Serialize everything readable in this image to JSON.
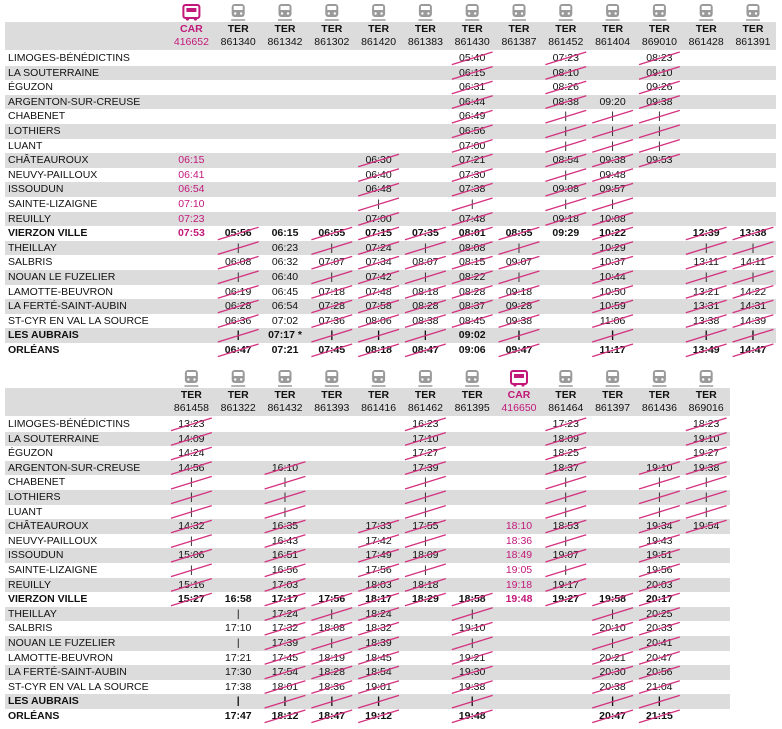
{
  "stations": [
    "LIMOGES-BÉNÉDICTINS",
    "LA SOUTERRAINE",
    "ÉGUZON",
    "ARGENTON-SUR-CREUSE",
    "CHABENET",
    "LOTHIERS",
    "LUANT",
    "CHÂTEAUROUX",
    "NEUVY-PAILLOUX",
    "ISSOUDUN",
    "SAINTE-LIZAIGNE",
    "REUILLY",
    "VIERZON VILLE",
    "THEILLAY",
    "SALBRIS",
    "NOUAN LE FUZELIER",
    "LAMOTTE-BEUVRON",
    "LA FERTÉ-SAINT-AUBIN",
    "ST-CYR EN VAL LA SOURCE",
    "LES AUBRAIS",
    "ORLÉANS"
  ],
  "tables": [
    {
      "columns": [
        {
          "mode": "CAR",
          "number": "416652",
          "times": [
            null,
            null,
            null,
            null,
            null,
            null,
            null,
            "06:15",
            "06:41",
            "06:54",
            "07:10",
            "07:23",
            "07:53",
            null,
            null,
            null,
            null,
            null,
            null,
            null,
            null
          ]
        },
        {
          "mode": "TER",
          "number": "861340",
          "cancelled": [
            12,
            20
          ],
          "times": [
            null,
            null,
            null,
            null,
            null,
            null,
            null,
            null,
            null,
            null,
            null,
            null,
            "05:56",
            "|",
            "06:08",
            "|",
            "06:19",
            "06:28",
            "06:36",
            "|",
            "06:47"
          ]
        },
        {
          "mode": "TER",
          "number": "861342",
          "times": [
            null,
            null,
            null,
            null,
            null,
            null,
            null,
            null,
            null,
            null,
            null,
            null,
            "06:15",
            "06:23",
            "06:32",
            "06:40",
            "06:45",
            "06:54",
            "07:02",
            "07:17 *",
            "07:21"
          ]
        },
        {
          "mode": "TER",
          "number": "861302",
          "cancelled": [
            12,
            20
          ],
          "times": [
            null,
            null,
            null,
            null,
            null,
            null,
            null,
            null,
            null,
            null,
            null,
            null,
            "06:55",
            "|",
            "07:07",
            "|",
            "07:18",
            "07:28",
            "07:36",
            "|",
            "07:45"
          ]
        },
        {
          "mode": "TER",
          "number": "861420",
          "cancelled": [
            7,
            20
          ],
          "times": [
            null,
            null,
            null,
            null,
            null,
            null,
            null,
            "06:30",
            "06:40",
            "06:48",
            "|",
            "07:00",
            "07:15",
            "07:24",
            "07:34",
            "07:42",
            "07:48",
            "07:58",
            "08:06",
            "|",
            "08:18"
          ]
        },
        {
          "mode": "TER",
          "number": "861383",
          "cancelled": [
            12,
            20
          ],
          "times": [
            null,
            null,
            null,
            null,
            null,
            null,
            null,
            null,
            null,
            null,
            null,
            null,
            "07:35",
            "|",
            "08:07",
            "|",
            "08:18",
            "08:28",
            "08:38",
            "|",
            "08:47"
          ]
        },
        {
          "mode": "TER",
          "number": "861430",
          "cancelled": [
            0,
            18
          ],
          "times": [
            "05:40",
            "06:15",
            "06:31",
            "06:44",
            "06:49",
            "06:56",
            "07:00",
            "07:21",
            "07:30",
            "07:38",
            "|",
            "07:48",
            "08:01",
            "08:08",
            "08:15",
            "08:22",
            "08:28",
            "08:37",
            "08:45",
            "09:02",
            "09:06"
          ]
        },
        {
          "mode": "TER",
          "number": "861387",
          "cancelled": [
            12,
            20
          ],
          "times": [
            null,
            null,
            null,
            null,
            null,
            null,
            null,
            null,
            null,
            null,
            null,
            null,
            "08:55",
            "|",
            "09:07",
            "|",
            "09:18",
            "09:28",
            "09:38",
            "|",
            "09:47"
          ]
        },
        {
          "mode": "TER",
          "number": "861452",
          "cancelled": [
            0,
            11
          ],
          "times": [
            "07:23",
            "08:10",
            "08:26",
            "08:38",
            "|",
            "|",
            "|",
            "08:54",
            "|",
            "09:08",
            "|",
            "09:18",
            "09:29",
            null,
            null,
            null,
            null,
            null,
            null,
            null,
            null
          ]
        },
        {
          "mode": "TER",
          "number": "861404",
          "cancelled": [
            4,
            20
          ],
          "times": [
            null,
            null,
            null,
            "09:20",
            "|",
            "|",
            "|",
            "09:38",
            "09:48",
            "09:57",
            "|",
            "10:08",
            "10:22",
            "10:29",
            "10:37",
            "10:44",
            "10:50",
            "10:59",
            "11:06",
            "|",
            "11:17"
          ]
        },
        {
          "mode": "TER",
          "number": "869010",
          "cancelled": [
            0,
            7
          ],
          "times": [
            "08:23",
            "09:10",
            "09:26",
            "09:38",
            "|",
            "|",
            "|",
            "09:53",
            null,
            null,
            null,
            null,
            null,
            null,
            null,
            null,
            null,
            null,
            null,
            null,
            null
          ]
        },
        {
          "mode": "TER",
          "number": "861428",
          "cancelled": [
            12,
            20
          ],
          "times": [
            null,
            null,
            null,
            null,
            null,
            null,
            null,
            null,
            null,
            null,
            null,
            null,
            "12:39",
            "|",
            "13:11",
            "|",
            "13:21",
            "13:31",
            "13:38",
            "|",
            "13:49"
          ]
        },
        {
          "mode": "TER",
          "number": "861391",
          "cancelled": [
            12,
            20
          ],
          "times": [
            null,
            null,
            null,
            null,
            null,
            null,
            null,
            null,
            null,
            null,
            null,
            null,
            "13:38",
            "|",
            "14:11",
            "|",
            "14:22",
            "14:31",
            "14:39",
            "|",
            "14:47"
          ]
        }
      ]
    },
    {
      "columns": [
        {
          "mode": "TER",
          "number": "861458",
          "cancelled": [
            0,
            12
          ],
          "times": [
            "13:23",
            "14:09",
            "14:24",
            "14:56",
            "|",
            "|",
            "|",
            "14:32",
            "|",
            "15:06",
            "|",
            "15:16",
            "15:27",
            null,
            null,
            null,
            null,
            null,
            null,
            null,
            null
          ]
        },
        {
          "mode": "TER",
          "number": "861322",
          "times": [
            null,
            null,
            null,
            null,
            null,
            null,
            null,
            null,
            null,
            null,
            null,
            null,
            "16:58",
            "|",
            "17:10",
            "|",
            "17:21",
            "17:30",
            "17:38",
            "|",
            "17:47"
          ]
        },
        {
          "mode": "TER",
          "number": "861432",
          "cancelled": [
            3,
            20
          ],
          "times": [
            null,
            null,
            null,
            "16:10",
            "|",
            "|",
            "|",
            "16:35",
            "16:43",
            "16:51",
            "16:56",
            "17:03",
            "17:17",
            "17:24",
            "17:32",
            "17:39",
            "17:45",
            "17:54",
            "18:01",
            "|",
            "18:12"
          ]
        },
        {
          "mode": "TER",
          "number": "861393",
          "cancelled": [
            12,
            20
          ],
          "times": [
            null,
            null,
            null,
            null,
            null,
            null,
            null,
            null,
            null,
            null,
            null,
            null,
            "17:56",
            "|",
            "18:08",
            "|",
            "18:19",
            "18:28",
            "18:36",
            "|",
            "18:47"
          ]
        },
        {
          "mode": "TER",
          "number": "861416",
          "cancelled": [
            7,
            20
          ],
          "times": [
            null,
            null,
            null,
            null,
            null,
            null,
            null,
            "17:33",
            "17:42",
            "17:49",
            "17:56",
            "18:03",
            "18:17",
            "18:24",
            "18:32",
            "18:39",
            "18:45",
            "18:54",
            "19:01",
            "|",
            "19:12"
          ]
        },
        {
          "mode": "TER",
          "number": "861462",
          "cancelled": [
            0,
            12
          ],
          "times": [
            "16:23",
            "17:10",
            "17:27",
            "17:39",
            "|",
            "|",
            "|",
            "17:55",
            "|",
            "18:09",
            "|",
            "18:18",
            "18:29",
            null,
            null,
            null,
            null,
            null,
            null,
            null,
            null
          ]
        },
        {
          "mode": "TER",
          "number": "861395",
          "cancelled": [
            12,
            20
          ],
          "times": [
            null,
            null,
            null,
            null,
            null,
            null,
            null,
            null,
            null,
            null,
            null,
            null,
            "18:58",
            "|",
            "19:10",
            "|",
            "19:21",
            "19:30",
            "19:38",
            "|",
            "19:48"
          ]
        },
        {
          "mode": "CAR",
          "number": "416650",
          "times": [
            null,
            null,
            null,
            null,
            null,
            null,
            null,
            "18:10",
            "18:36",
            "18:49",
            "19:05",
            "19:18",
            "19:48",
            null,
            null,
            null,
            null,
            null,
            null,
            null,
            null
          ]
        },
        {
          "mode": "TER",
          "number": "861464",
          "cancelled": [
            0,
            12
          ],
          "times": [
            "17:23",
            "18:09",
            "18:25",
            "18:37",
            "|",
            "|",
            "|",
            "18:53",
            "|",
            "19:07",
            "|",
            "19:17",
            "19:27",
            null,
            null,
            null,
            null,
            null,
            null,
            null,
            null
          ]
        },
        {
          "mode": "TER",
          "number": "861397",
          "cancelled": [
            12,
            20
          ],
          "times": [
            null,
            null,
            null,
            null,
            null,
            null,
            null,
            null,
            null,
            null,
            null,
            null,
            "19:58",
            "|",
            "20:10",
            "|",
            "20:21",
            "20:30",
            "20:38",
            "|",
            "20:47"
          ]
        },
        {
          "mode": "TER",
          "number": "861436",
          "cancelled": [
            3,
            20
          ],
          "times": [
            null,
            null,
            null,
            "19:10",
            "|",
            "|",
            "|",
            "19:34",
            "19:43",
            "19:51",
            "19:56",
            "20:03",
            "20:17",
            "20:25",
            "20:33",
            "20:41",
            "20:47",
            "20:56",
            "21:04",
            "|",
            "21:15"
          ]
        },
        {
          "mode": "TER",
          "number": "869016",
          "cancelled": [
            0,
            7
          ],
          "times": [
            "18:23",
            "19:10",
            "19:27",
            "19:38",
            "|",
            "|",
            "|",
            "19:54",
            null,
            null,
            null,
            null,
            null,
            null,
            null,
            null,
            null,
            null,
            null,
            null,
            null
          ]
        }
      ]
    }
  ]
}
